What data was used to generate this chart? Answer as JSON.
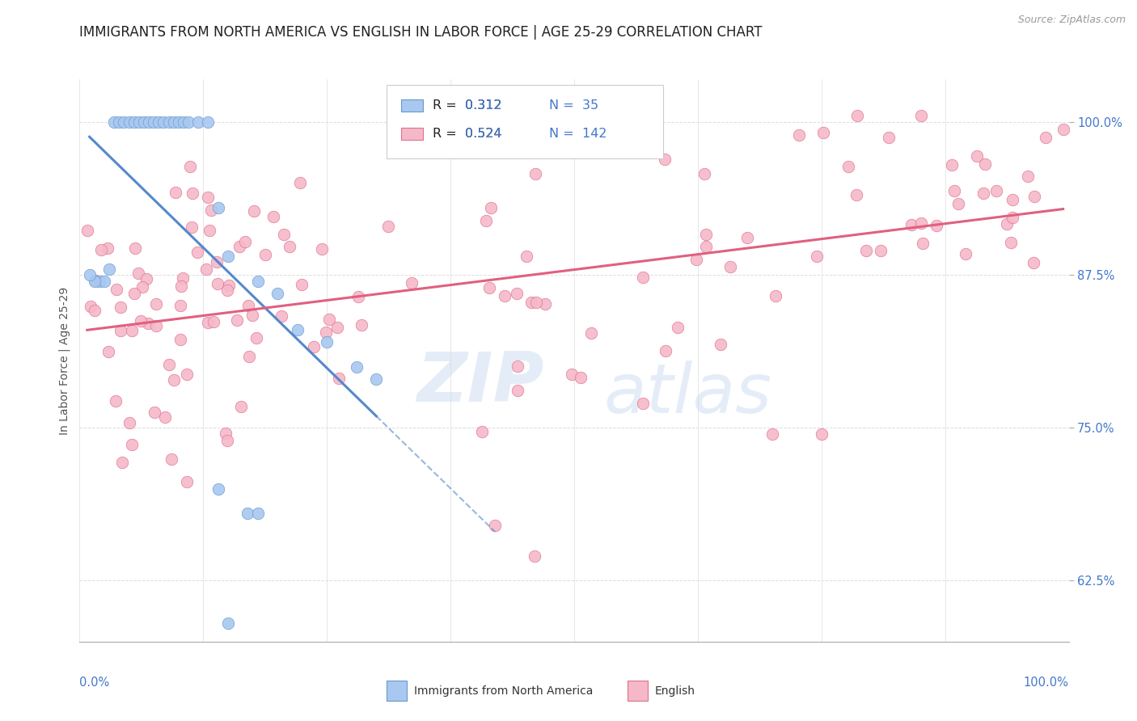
{
  "title": "IMMIGRANTS FROM NORTH AMERICA VS ENGLISH IN LABOR FORCE | AGE 25-29 CORRELATION CHART",
  "source": "Source: ZipAtlas.com",
  "ylabel": "In Labor Force | Age 25-29",
  "ytick_labels": [
    "62.5%",
    "75.0%",
    "87.5%",
    "100.0%"
  ],
  "ytick_positions": [
    0.625,
    0.75,
    0.875,
    1.0
  ],
  "xrange": [
    0.0,
    1.0
  ],
  "yrange": [
    0.575,
    1.035
  ],
  "blue_color": "#A8C8F0",
  "blue_edge_color": "#6699CC",
  "pink_color": "#F5B8C8",
  "pink_edge_color": "#E07090",
  "blue_line_color": "#5588CC",
  "pink_line_color": "#E06080",
  "legend_blue_label": "Immigrants from North America",
  "legend_pink_label": "English",
  "R_blue": 0.312,
  "N_blue": 35,
  "R_pink": 0.524,
  "N_pink": 142,
  "watermark_zip": "ZIP",
  "watermark_atlas": "atlas",
  "background_color": "#FFFFFF",
  "grid_color": "#DDDDDD",
  "title_color": "#222222",
  "axis_label_color": "#4477CC",
  "title_fontsize": 12,
  "ylabel_fontsize": 10,
  "source_fontsize": 9,
  "scatter_size": 110
}
